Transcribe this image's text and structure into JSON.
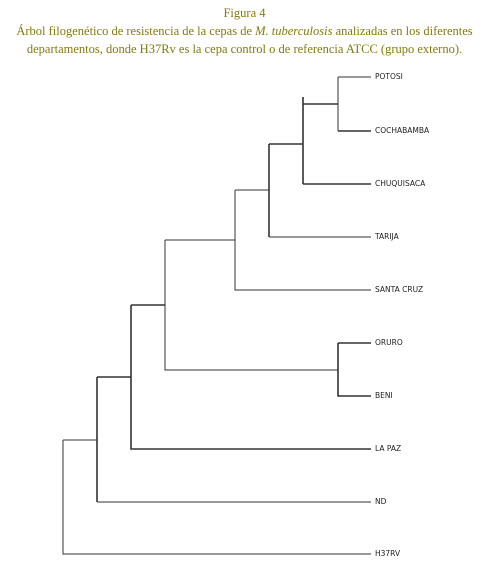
{
  "caption": {
    "label": "Figura 4",
    "text_before": "Árbol filogenético de resistencia de la cepas de ",
    "text_italic": "M. tuberculosis",
    "text_after": " analizadas en los diferentes departamentos, donde H37Rv es la cepa control o de referencia ATCC (grupo externo)."
  },
  "leaves": [
    "POTOSI",
    "COCHABAMBA",
    "CHUQUISACA",
    "TARIJA",
    "SANTA CRUZ",
    "ORURO",
    "BENI",
    "LA PAZ",
    "ND",
    "H37RV"
  ]
}
